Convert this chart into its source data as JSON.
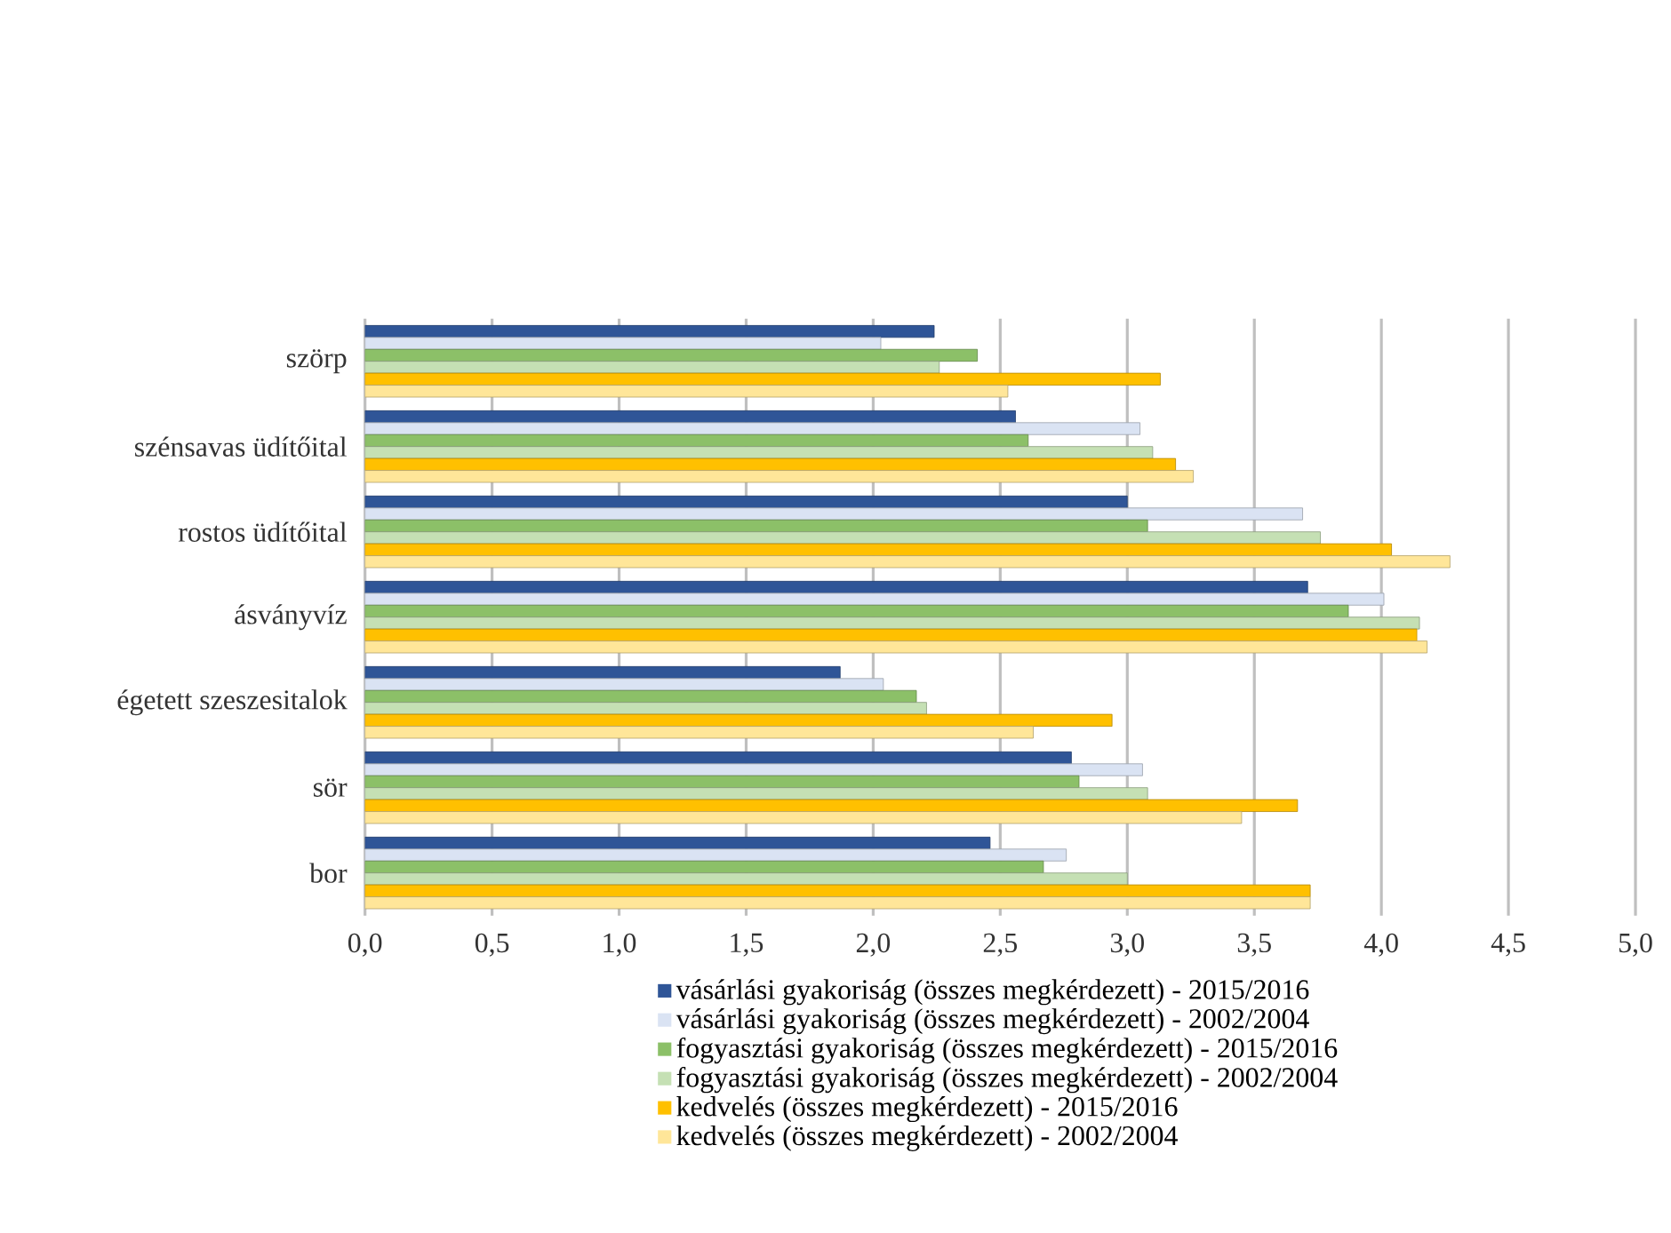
{
  "chart_data": {
    "type": "bar",
    "orientation": "horizontal",
    "categories": [
      "szörp",
      "szénsavas üdítőital",
      "rostos üdítőital",
      "ásványvíz",
      "égetett szeszesitalok",
      "sör",
      "bor"
    ],
    "series": [
      {
        "name": "vásárlási gyakoriság (összes megkérdezett) - 2015/2016",
        "color": "#2f5597",
        "values": [
          2.24,
          2.56,
          3.0,
          3.71,
          1.87,
          2.78,
          2.46
        ]
      },
      {
        "name": "vásárlási gyakoriság (összes megkérdezett) - 2002/2004",
        "color": "#dae3f3",
        "values": [
          2.03,
          3.05,
          3.69,
          4.01,
          2.04,
          3.06,
          2.76
        ]
      },
      {
        "name": "fogyasztási gyakoriság (összes megkérdezett) - 2015/2016",
        "color": "#8cc068",
        "values": [
          2.41,
          2.61,
          3.08,
          3.87,
          2.17,
          2.81,
          2.67
        ]
      },
      {
        "name": "fogyasztási gyakoriság (összes megkérdezett) - 2002/2004",
        "color": "#c5e0b4",
        "values": [
          2.26,
          3.1,
          3.76,
          4.15,
          2.21,
          3.08,
          3.0
        ]
      },
      {
        "name": "kedvelés (összes megkérdezett) - 2015/2016",
        "color": "#ffc000",
        "values": [
          3.13,
          3.19,
          4.04,
          4.14,
          2.94,
          3.67,
          3.72
        ]
      },
      {
        "name": "kedvelés (összes megkérdezett) - 2002/2004",
        "color": "#ffe699",
        "values": [
          2.53,
          3.26,
          4.27,
          4.18,
          2.63,
          3.45,
          3.72
        ]
      }
    ],
    "xlim": [
      0,
      5
    ],
    "xticks": [
      {
        "value": 0,
        "label": "0,0"
      },
      {
        "value": 0.5,
        "label": "0,5"
      },
      {
        "value": 1,
        "label": "1,0"
      },
      {
        "value": 1.5,
        "label": "1,5"
      },
      {
        "value": 2,
        "label": "2,0"
      },
      {
        "value": 2.5,
        "label": "2,5"
      },
      {
        "value": 3,
        "label": "3,0"
      },
      {
        "value": 3.5,
        "label": "3,5"
      },
      {
        "value": 4,
        "label": "4,0"
      },
      {
        "value": 4.5,
        "label": "4,5"
      },
      {
        "value": 5,
        "label": "5,0"
      }
    ],
    "grid": "x",
    "legend": "bottom"
  }
}
